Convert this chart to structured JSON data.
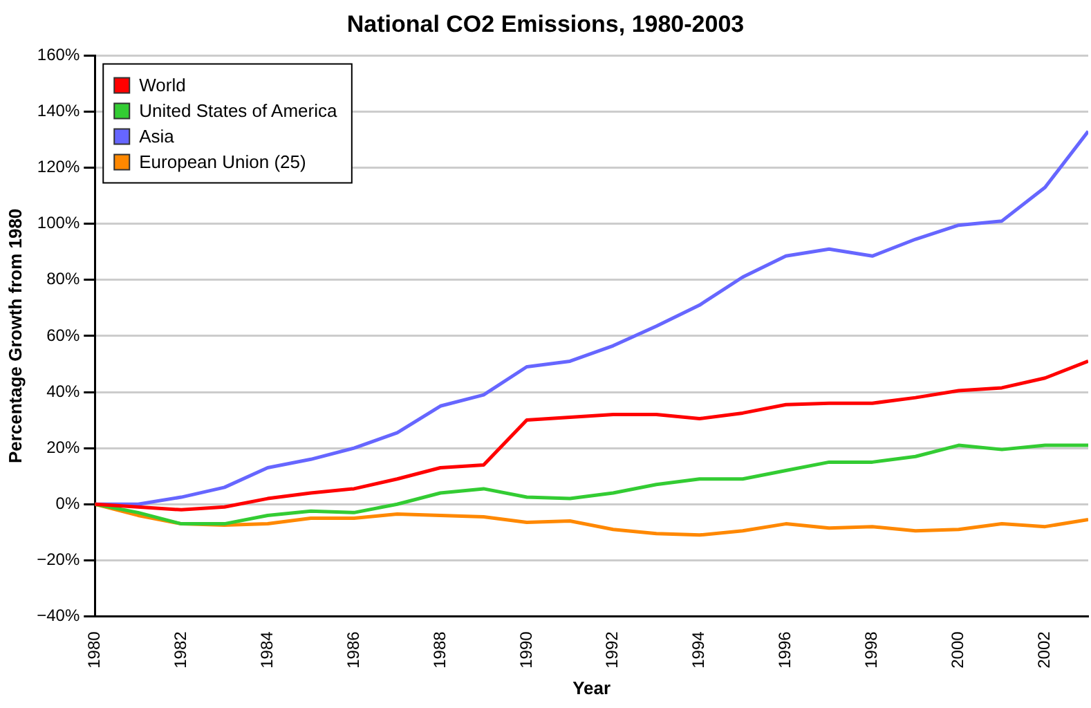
{
  "chart_data": {
    "type": "line",
    "title": "National CO2 Emissions, 1980-2003",
    "xlabel": "Year",
    "ylabel": "Percentage Growth from 1980",
    "x": [
      1980,
      1981,
      1982,
      1983,
      1984,
      1985,
      1986,
      1987,
      1988,
      1989,
      1990,
      1991,
      1992,
      1993,
      1994,
      1995,
      1996,
      1997,
      1998,
      1999,
      2000,
      2001,
      2002,
      2003
    ],
    "series": [
      {
        "name": "World",
        "color": "#ff0000",
        "values": [
          0,
          -1,
          -2,
          -1,
          2,
          4,
          5.5,
          9,
          13,
          14,
          30,
          31,
          32,
          32,
          30.5,
          32.5,
          35.5,
          36,
          36,
          38,
          40.5,
          41.5,
          45,
          51
        ]
      },
      {
        "name": "United States of America",
        "color": "#33cc33",
        "values": [
          0,
          -3,
          -7,
          -7,
          -4,
          -2.5,
          -3,
          0,
          4,
          5.5,
          2.5,
          2,
          4,
          7,
          9,
          9,
          12,
          15,
          15,
          17,
          21,
          19.5,
          21,
          21
        ]
      },
      {
        "name": "Asia",
        "color": "#6666ff",
        "values": [
          0,
          0,
          2.5,
          6,
          13,
          16,
          20,
          25.5,
          35,
          39,
          49,
          51,
          56.5,
          63.5,
          71,
          81,
          88.5,
          91,
          88.5,
          94.5,
          99.5,
          101,
          113,
          133
        ]
      },
      {
        "name": "European Union (25)",
        "color": "#ff8800",
        "values": [
          0,
          -4,
          -7,
          -7.5,
          -7,
          -5,
          -5,
          -3.5,
          -4,
          -4.5,
          -6.5,
          -6,
          -9,
          -10.5,
          -11,
          -9.5,
          -7,
          -8.5,
          -8,
          -9.5,
          -9,
          -7,
          -8,
          -5.5
        ]
      }
    ],
    "xlim": [
      1980,
      2003
    ],
    "xticks": [
      1980,
      1982,
      1984,
      1986,
      1988,
      1990,
      1992,
      1994,
      1996,
      1998,
      2000,
      2002
    ],
    "ylim": [
      -40,
      160
    ],
    "yticks": [
      {
        "value": -40,
        "label": "−40%"
      },
      {
        "value": -20,
        "label": "−20%"
      },
      {
        "value": 0,
        "label": "0%"
      },
      {
        "value": 20,
        "label": "20%"
      },
      {
        "value": 40,
        "label": "40%"
      },
      {
        "value": 60,
        "label": "60%"
      },
      {
        "value": 80,
        "label": "80%"
      },
      {
        "value": 100,
        "label": "100%"
      },
      {
        "value": 120,
        "label": "120%"
      },
      {
        "value": 140,
        "label": "140%"
      },
      {
        "value": 160,
        "label": "160%"
      }
    ],
    "grid": "y",
    "legend": "top left",
    "marker": "none",
    "line_style": "solid"
  }
}
